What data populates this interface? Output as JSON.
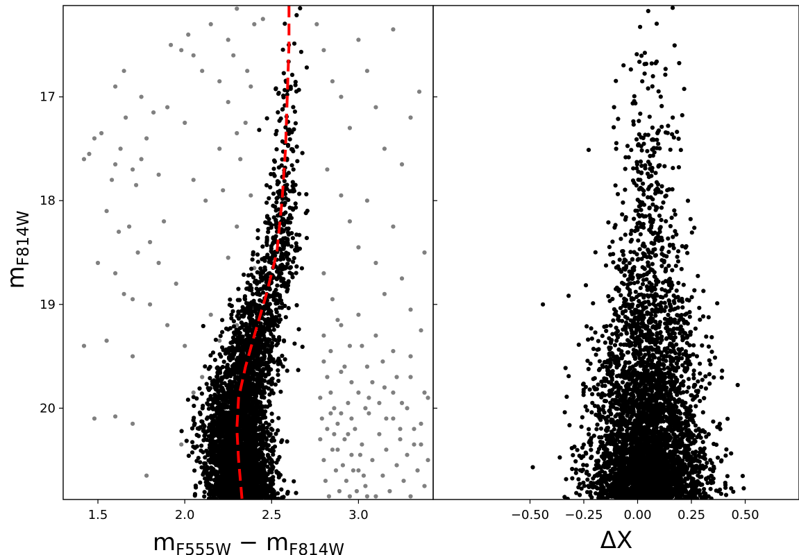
{
  "chart_data": [
    {
      "type": "scatter",
      "panel": "left",
      "xlabel": {
        "base": "m",
        "sub1": "F555W",
        "op": " − ",
        "base2": "m",
        "sub2": "F814W"
      },
      "ylabel": {
        "base": "m",
        "sub": "F814W"
      },
      "xlim": [
        1.3,
        3.43
      ],
      "ylim": [
        20.88,
        16.12
      ],
      "y_inverted": true,
      "xticks": [
        1.5,
        2.0,
        2.5,
        3.0
      ],
      "xtick_labels": [
        "1.5",
        "2.0",
        "2.5",
        "3.0"
      ],
      "yticks": [
        17,
        18,
        19,
        20
      ],
      "ytick_labels": [
        "17",
        "18",
        "19",
        "20"
      ],
      "grid": false,
      "series": [
        {
          "color": "#808080",
          "marker": "circle",
          "role": "field stars",
          "points": [
            [
              1.42,
              17.6
            ],
            [
              1.45,
              17.55
            ],
            [
              1.48,
              17.4
            ],
            [
              1.52,
              17.35
            ],
            [
              1.58,
              17.8
            ],
            [
              1.6,
              17.65
            ],
            [
              1.63,
              17.5
            ],
            [
              1.66,
              17.2
            ],
            [
              1.7,
              17.7
            ],
            [
              1.72,
              17.85
            ],
            [
              1.75,
              17.6
            ],
            [
              1.78,
              17.4
            ],
            [
              1.82,
              17.15
            ],
            [
              1.85,
              17.75
            ],
            [
              1.55,
              18.1
            ],
            [
              1.62,
              18.3
            ],
            [
              1.68,
              18.25
            ],
            [
              1.73,
              18.5
            ],
            [
              1.8,
              18.4
            ],
            [
              1.88,
              18.2
            ],
            [
              1.5,
              18.6
            ],
            [
              1.6,
              18.7
            ],
            [
              1.65,
              18.9
            ],
            [
              1.7,
              18.95
            ],
            [
              1.42,
              19.4
            ],
            [
              1.55,
              19.35
            ],
            [
              1.7,
              19.5
            ],
            [
              1.8,
              19.0
            ],
            [
              1.48,
              20.1
            ],
            [
              1.6,
              20.08
            ],
            [
              1.7,
              20.15
            ],
            [
              1.78,
              20.65
            ],
            [
              1.92,
              16.5
            ],
            [
              1.98,
              16.55
            ],
            [
              2.02,
              16.4
            ],
            [
              2.1,
              16.75
            ],
            [
              2.2,
              16.85
            ],
            [
              2.25,
              17.05
            ],
            [
              2.2,
              17.5
            ],
            [
              2.05,
              17.8
            ],
            [
              2.12,
              18.0
            ],
            [
              2.22,
              17.9
            ],
            [
              2.3,
              17.35
            ],
            [
              2.32,
              17.6
            ],
            [
              2.35,
              17.25
            ],
            [
              2.38,
              17.95
            ],
            [
              2.3,
              18.25
            ],
            [
              2.25,
              18.55
            ],
            [
              2.4,
              18.65
            ],
            [
              2.15,
              19.1
            ],
            [
              2.3,
              19.2
            ],
            [
              2.2,
              19.35
            ],
            [
              2.1,
              19.7
            ],
            [
              1.6,
              16.9
            ],
            [
              1.65,
              16.75
            ],
            [
              1.75,
              17.0
            ],
            [
              1.9,
              17.1
            ],
            [
              2.0,
              17.25
            ],
            [
              2.05,
              16.6
            ],
            [
              2.15,
              16.3
            ],
            [
              2.25,
              16.45
            ],
            [
              2.38,
              16.9
            ],
            [
              1.85,
              18.6
            ],
            [
              1.95,
              18.8
            ],
            [
              1.9,
              19.2
            ],
            [
              2.0,
              19.4
            ],
            [
              2.05,
              19.85
            ],
            [
              1.98,
              20.35
            ],
            [
              2.3,
              16.15
            ],
            [
              2.28,
              16.6
            ],
            [
              2.36,
              16.75
            ],
            [
              2.4,
              16.3
            ],
            [
              2.45,
              16.25
            ],
            [
              2.76,
              16.3
            ],
            [
              2.8,
              16.55
            ],
            [
              2.85,
              16.85
            ],
            [
              2.9,
              17.0
            ],
            [
              2.95,
              17.3
            ],
            [
              3.0,
              16.45
            ],
            [
              3.05,
              16.75
            ],
            [
              3.1,
              17.1
            ],
            [
              3.15,
              17.5
            ],
            [
              3.2,
              16.35
            ],
            [
              3.25,
              17.65
            ],
            [
              3.3,
              17.2
            ],
            [
              3.35,
              16.95
            ],
            [
              2.82,
              17.7
            ],
            [
              2.9,
              17.95
            ],
            [
              2.95,
              18.2
            ],
            [
              3.0,
              18.45
            ],
            [
              3.05,
              18.0
            ],
            [
              3.1,
              18.6
            ],
            [
              3.15,
              18.9
            ],
            [
              3.2,
              18.25
            ],
            [
              3.25,
              18.75
            ],
            [
              3.3,
              19.05
            ],
            [
              3.38,
              18.5
            ],
            [
              2.8,
              18.7
            ],
            [
              2.85,
              18.95
            ],
            [
              2.9,
              19.2
            ],
            [
              2.95,
              19.4
            ],
            [
              3.0,
              19.1
            ],
            [
              3.05,
              19.6
            ],
            [
              3.1,
              19.3
            ],
            [
              3.15,
              19.8
            ],
            [
              3.2,
              19.45
            ],
            [
              3.25,
              19.95
            ],
            [
              3.3,
              19.7
            ],
            [
              3.36,
              19.25
            ],
            [
              2.8,
              19.55
            ],
            [
              2.82,
              19.7
            ],
            [
              2.84,
              19.85
            ],
            [
              2.86,
              20.0
            ],
            [
              2.88,
              20.15
            ],
            [
              2.9,
              19.65
            ],
            [
              2.92,
              20.3
            ],
            [
              2.94,
              19.95
            ],
            [
              2.96,
              20.45
            ],
            [
              2.98,
              20.2
            ],
            [
              3.0,
              20.6
            ],
            [
              3.02,
              20.35
            ],
            [
              3.04,
              20.75
            ],
            [
              3.06,
              20.05
            ],
            [
              3.08,
              20.5
            ],
            [
              3.1,
              20.85
            ],
            [
              3.12,
              20.25
            ],
            [
              3.14,
              20.65
            ],
            [
              3.16,
              20.4
            ],
            [
              3.18,
              20.8
            ],
            [
              3.2,
              20.1
            ],
            [
              3.22,
              20.55
            ],
            [
              3.24,
              20.3
            ],
            [
              3.26,
              20.7
            ],
            [
              3.28,
              20.45
            ],
            [
              3.3,
              20.85
            ],
            [
              3.32,
              20.2
            ],
            [
              3.34,
              20.6
            ],
            [
              3.36,
              20.35
            ],
            [
              3.38,
              20.75
            ],
            [
              3.4,
              20.5
            ],
            [
              2.78,
              20.3
            ],
            [
              2.8,
              20.5
            ],
            [
              2.81,
              20.7
            ],
            [
              2.83,
              20.85
            ],
            [
              2.85,
              20.4
            ],
            [
              2.87,
              20.6
            ],
            [
              2.89,
              20.8
            ],
            [
              2.91,
              20.55
            ],
            [
              2.93,
              20.7
            ],
            [
              2.95,
              20.85
            ],
            [
              2.97,
              20.6
            ],
            [
              2.99,
              20.8
            ],
            [
              3.01,
              20.45
            ],
            [
              3.03,
              20.65
            ],
            [
              3.05,
              20.85
            ],
            [
              2.78,
              19.9
            ],
            [
              2.79,
              20.1
            ],
            [
              2.82,
              20.2
            ],
            [
              2.84,
              20.05
            ],
            [
              2.86,
              20.25
            ],
            [
              2.88,
              20.4
            ],
            [
              2.9,
              20.05
            ],
            [
              2.94,
              20.25
            ],
            [
              2.96,
              20.1
            ],
            [
              3.0,
              19.85
            ],
            [
              3.04,
              20.0
            ],
            [
              3.08,
              19.75
            ],
            [
              3.12,
              19.95
            ],
            [
              3.16,
              20.1
            ],
            [
              3.2,
              19.85
            ],
            [
              3.24,
              20.2
            ],
            [
              3.28,
              20.0
            ],
            [
              3.32,
              20.35
            ],
            [
              3.36,
              20.15
            ],
            [
              3.4,
              19.9
            ],
            [
              2.8,
              19.3
            ],
            [
              2.84,
              19.45
            ],
            [
              2.88,
              19.15
            ],
            [
              2.92,
              19.6
            ],
            [
              2.96,
              19.75
            ],
            [
              3.02,
              19.4
            ],
            [
              3.06,
              19.9
            ],
            [
              3.14,
              19.55
            ],
            [
              3.22,
              19.7
            ],
            [
              3.3,
              19.5
            ],
            [
              3.38,
              19.85
            ]
          ]
        },
        {
          "color": "#000000",
          "marker": "circle",
          "role": "selected main sequence"
        }
      ],
      "fiducial_line": {
        "color": "#ff0000",
        "style": "dashed",
        "points": [
          [
            2.6,
            16.12
          ],
          [
            2.6,
            16.5
          ],
          [
            2.59,
            17.0
          ],
          [
            2.58,
            17.5
          ],
          [
            2.56,
            18.0
          ],
          [
            2.53,
            18.5
          ],
          [
            2.47,
            18.9
          ],
          [
            2.4,
            19.3
          ],
          [
            2.35,
            19.6
          ],
          [
            2.31,
            19.9
          ],
          [
            2.3,
            20.2
          ],
          [
            2.31,
            20.5
          ],
          [
            2.33,
            20.88
          ]
        ]
      },
      "density_model": {
        "note": "black points follow the fiducial line; spread and density increase toward fainter magnitudes",
        "width_bins": [
          [
            16.12,
            0.06
          ],
          [
            17.0,
            0.07
          ],
          [
            18.0,
            0.08
          ],
          [
            18.5,
            0.1
          ],
          [
            19.0,
            0.13
          ],
          [
            19.5,
            0.15
          ],
          [
            20.0,
            0.15
          ],
          [
            20.88,
            0.15
          ]
        ]
      }
    },
    {
      "type": "scatter",
      "panel": "right",
      "xlabel": "ΔX",
      "xlim": [
        -0.95,
        0.75
      ],
      "ylim": [
        20.88,
        16.12
      ],
      "y_inverted": true,
      "xticks": [
        -0.5,
        -0.25,
        0.0,
        0.25,
        0.5
      ],
      "xtick_labels": [
        "−0.50",
        "−0.25",
        "0.00",
        "0.25",
        "0.50"
      ],
      "yticks": [
        17,
        18,
        19,
        20
      ],
      "grid": false,
      "series": [
        {
          "color": "#000000",
          "marker": "circle",
          "role": "verticalized main sequence"
        }
      ],
      "outliers": [
        [
          -0.44,
          19.0
        ]
      ],
      "density_model": {
        "note": "points spread symmetrically about ΔX≈0.05, width growing toward fainter magnitudes",
        "width_bins": [
          [
            16.12,
            0.1
          ],
          [
            17.0,
            0.11
          ],
          [
            18.0,
            0.12
          ],
          [
            18.5,
            0.14
          ],
          [
            19.0,
            0.17
          ],
          [
            19.5,
            0.2
          ],
          [
            20.0,
            0.21
          ],
          [
            20.88,
            0.21
          ]
        ]
      }
    }
  ]
}
